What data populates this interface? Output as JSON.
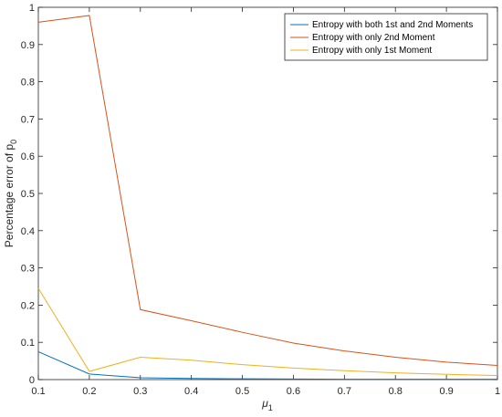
{
  "chart_data": {
    "type": "line",
    "x": [
      0.1,
      0.2,
      0.3,
      0.4,
      0.5,
      0.6,
      0.7,
      0.8,
      0.9,
      1.0
    ],
    "xlabel": "μ",
    "xlabel_sub": "1",
    "ylabel": "Percentage error of p",
    "ylabel_sub": "0",
    "xlim": [
      0.1,
      1
    ],
    "ylim": [
      0,
      1
    ],
    "xticks": [
      0.1,
      0.2,
      0.3,
      0.4,
      0.5,
      0.6,
      0.7,
      0.8,
      0.9,
      1
    ],
    "yticks": [
      0,
      0.1,
      0.2,
      0.3,
      0.4,
      0.5,
      0.6,
      0.7,
      0.8,
      0.9,
      1
    ],
    "grid": false,
    "legend_position": "top-right",
    "series": [
      {
        "name": "Entropy with both 1st and 2nd Moments",
        "color": "#0072BD",
        "values": [
          0.075,
          0.015,
          0.005,
          0.003,
          0.002,
          0.0015,
          0.001,
          0.001,
          0.001,
          0.001
        ]
      },
      {
        "name": "Entropy with only 2nd Moment",
        "color": "#D95319",
        "values": [
          0.96,
          0.978,
          0.188,
          0.158,
          0.127,
          0.098,
          0.077,
          0.06,
          0.047,
          0.038
        ]
      },
      {
        "name": "Entropy with only 1st Moment",
        "color": "#EDB120",
        "values": [
          0.245,
          0.022,
          0.06,
          0.052,
          0.04,
          0.031,
          0.024,
          0.018,
          0.014,
          0.011
        ]
      }
    ]
  }
}
